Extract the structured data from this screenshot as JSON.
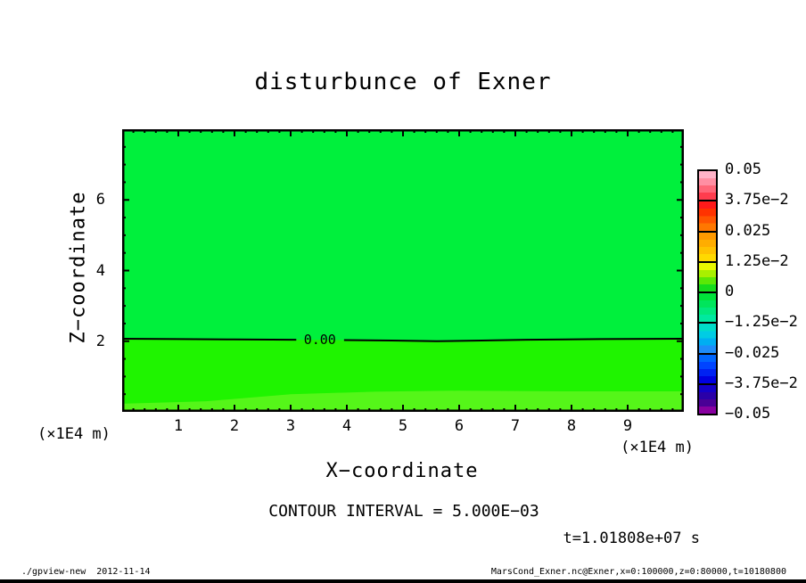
{
  "footer": {
    "left": "./gpview-new  2012-11-14",
    "right": "MarsCond_Exner.nc@Exner,x=0:100000,z=0:80000,t=10180800"
  },
  "chart_data": {
    "type": "heatmap",
    "title": "disturbunce of Exner",
    "xlabel": "X−coordinate",
    "ylabel": "Z−coordinate",
    "x_axis_factor_label": "(×1E4 m)",
    "z_axis_factor_label": "(×1E4 m)",
    "xlim": [
      0,
      10
    ],
    "zlim": [
      0,
      8
    ],
    "x_ticks_major": [
      1,
      2,
      3,
      4,
      5,
      6,
      7,
      8,
      9
    ],
    "x_tick_minor_step": 0.2,
    "z_ticks_major": [
      2,
      4,
      6
    ],
    "z_tick_minor_step": 0.5,
    "contour_interval_text": "CONTOUR INTERVAL = 5.000E−03",
    "time_label": "t=1.01808e+07 s",
    "fill_bands": [
      {
        "name": "band-above-zero-contour",
        "color": "#00F03C",
        "region": "z above 0.00 contour (value ~0)"
      },
      {
        "name": "band-below-zero-contour",
        "color": "#1FF400",
        "region": "0.55 < z < 2.05 (value 0 to 5e-3)"
      },
      {
        "name": "band-bottom-strip",
        "color": "#55F619",
        "region": "z < 0.55 (value 5e-3 to 1e-2)"
      }
    ],
    "band_bottom_top_edge": [
      [
        0,
        0.23
      ],
      [
        1.5,
        0.3
      ],
      [
        3,
        0.5
      ],
      [
        4.5,
        0.57
      ],
      [
        6,
        0.6
      ],
      [
        8,
        0.58
      ],
      [
        10,
        0.58
      ]
    ],
    "zero_contour": {
      "label": "0.00",
      "label_x": 3.52,
      "label_z": 2.04,
      "segments": [
        [
          [
            0,
            2.07
          ],
          [
            1,
            2.06
          ],
          [
            2,
            2.05
          ],
          [
            3,
            2.04
          ],
          [
            3.1,
            2.04
          ]
        ],
        [
          [
            3.95,
            2.03
          ],
          [
            4.8,
            2.02
          ],
          [
            5.6,
            2.0
          ],
          [
            6.4,
            2.02
          ],
          [
            7.2,
            2.04
          ],
          [
            8.5,
            2.06
          ],
          [
            10,
            2.07
          ]
        ]
      ]
    },
    "colorbar": {
      "labels": [
        "0.05",
        "3.75e−2",
        "0.025",
        "1.25e−2",
        "0",
        "−1.25e−2",
        "−0.025",
        "−3.75e−2",
        "−0.05"
      ],
      "cells": [
        [
          "#FFB3C8",
          "#FF8FA3",
          "#FF6678",
          "#FF3D4E"
        ],
        [
          "#FF1A1A",
          "#FF3300",
          "#FF5500",
          "#FF7700"
        ],
        [
          "#FF9900",
          "#FFAD00",
          "#FFC200",
          "#FFD900"
        ],
        [
          "#E8F700",
          "#A8F000",
          "#5CE806",
          "#17DC1C"
        ],
        [
          "#00E23A",
          "#00E55C",
          "#00E87E",
          "#00E9A0"
        ],
        [
          "#00DCC8",
          "#00CCE4",
          "#00AEF2",
          "#1E8CFA"
        ],
        [
          "#0066FF",
          "#0044FF",
          "#0022F2",
          "#0000E0"
        ],
        [
          "#1400C8",
          "#2A00A8",
          "#4A0096",
          "#8800A0"
        ]
      ]
    }
  }
}
